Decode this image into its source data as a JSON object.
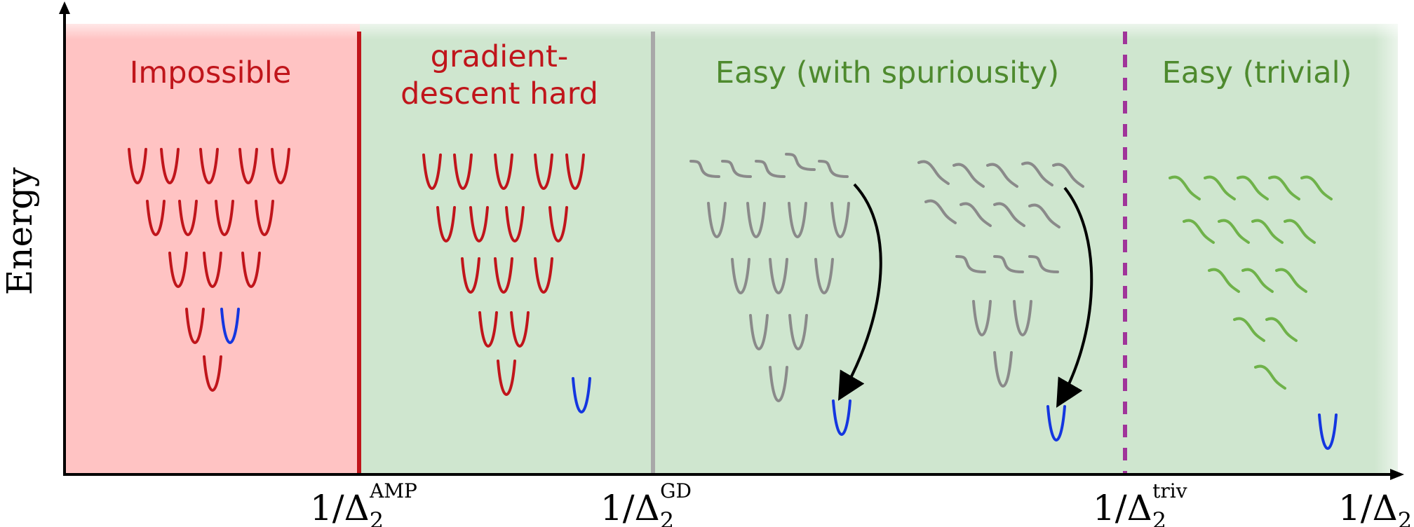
{
  "axes": {
    "ylabel": "Energy",
    "xlabel_text": "1/Δ",
    "xlabel_sub": "2",
    "ticks": [
      {
        "base": "1/Δ",
        "sub": "2",
        "sup": "AMP"
      },
      {
        "base": "1/Δ",
        "sub": "2",
        "sup": "GD"
      },
      {
        "base": "1/Δ",
        "sub": "2",
        "sup": "triv"
      }
    ]
  },
  "regions": [
    {
      "label": "Impossible"
    },
    {
      "label_line1": "gradient-",
      "label_line2": "descent hard"
    },
    {
      "label": "Easy (with spuriousity)"
    },
    {
      "label": "Easy (trivial)"
    }
  ],
  "colors": {
    "impossible_bg": "#ffc3c3",
    "easy_bg": "#cfe6cf",
    "red": "#c0151b",
    "green_text": "#4e8a2e",
    "grey": "#8a8a8a",
    "blue": "#1436e0",
    "green_wave": "#6fb24a",
    "purple": "#a0349a",
    "black": "#000000"
  }
}
